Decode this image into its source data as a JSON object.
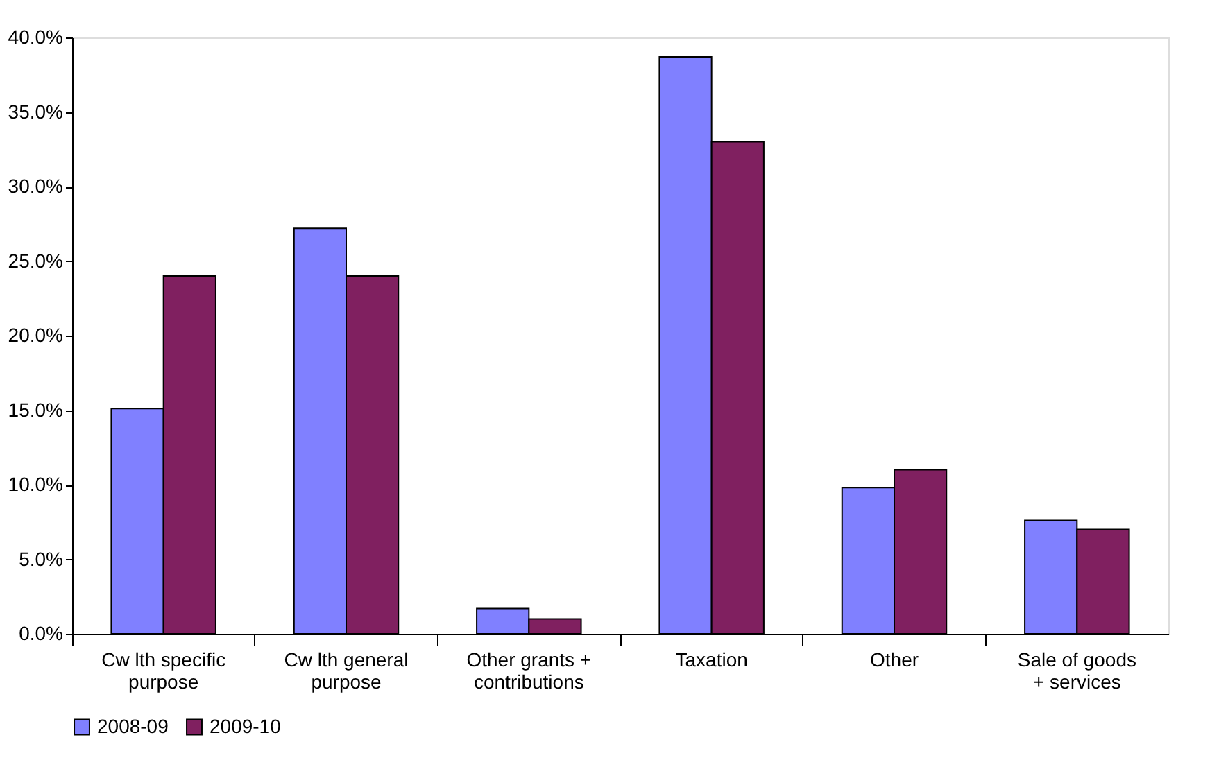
{
  "chart_data": {
    "type": "bar",
    "categories": [
      "Cw lth specific\npurpose",
      "Cw lth general\npurpose",
      "Other grants +\ncontributions",
      "Taxation",
      "Other",
      "Sale of goods\n+ services"
    ],
    "series": [
      {
        "name": "2008-09",
        "color": "#8080ff",
        "values": [
          15.1,
          27.2,
          1.7,
          38.7,
          9.8,
          7.6
        ]
      },
      {
        "name": "2009-10",
        "color": "#802060",
        "values": [
          24.0,
          24.0,
          1.0,
          33.0,
          11.0,
          7.0
        ]
      }
    ],
    "ylim": [
      0,
      40
    ],
    "yticks": [
      {
        "value": 0,
        "label": "0.0%"
      },
      {
        "value": 5,
        "label": "5.0%"
      },
      {
        "value": 10,
        "label": "10.0%"
      },
      {
        "value": 15,
        "label": "15.0%"
      },
      {
        "value": 20,
        "label": "20.0%"
      },
      {
        "value": 25,
        "label": "25.0%"
      },
      {
        "value": 30,
        "label": "30.0%"
      },
      {
        "value": 35,
        "label": "35.0%"
      },
      {
        "value": 40,
        "label": "40.0%"
      }
    ],
    "grid": false,
    "legend": "bottom"
  }
}
